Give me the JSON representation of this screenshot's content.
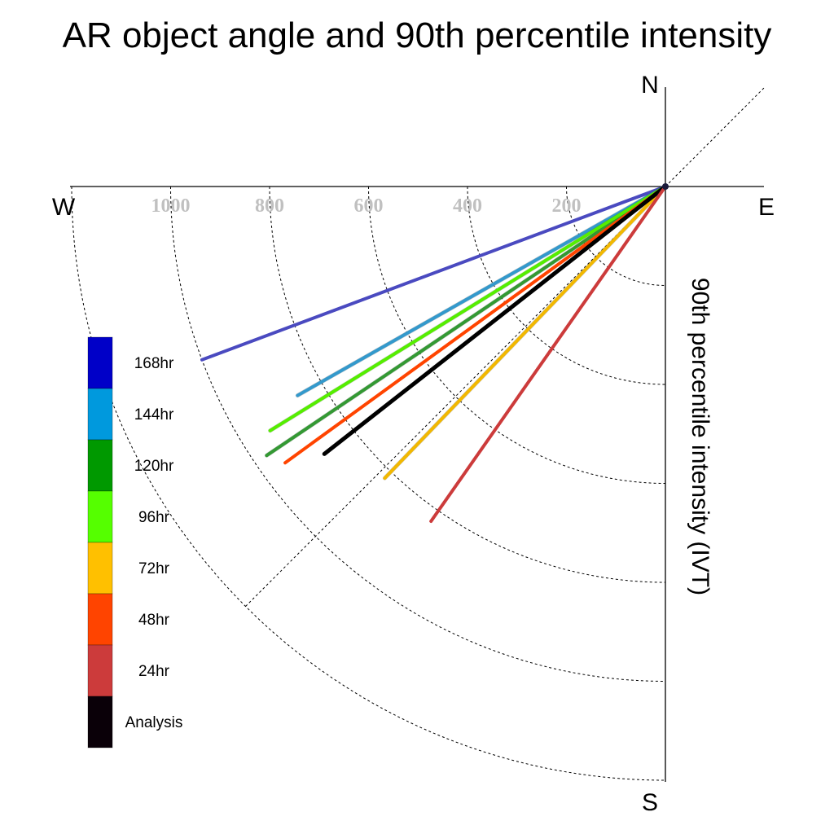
{
  "chart_data": {
    "type": "polar-line",
    "title": "AR object angle and 90th percentile intensity",
    "ylabel": "90th percentile intensity (IVT)",
    "compass": {
      "north": "N",
      "south": "S",
      "east": "E",
      "west": "W"
    },
    "radial_ticks": [
      200,
      400,
      600,
      800,
      1000
    ],
    "radial_max": 1200,
    "grid": true,
    "legend_position": "left",
    "series": [
      {
        "name": "168hr",
        "color": "#0000C8",
        "line_color": "#4A4AC0",
        "angle_deg_below_west": 20.5,
        "intensity": 1000
      },
      {
        "name": "144hr",
        "color": "#0099DD",
        "line_color": "#3399CC",
        "angle_deg_below_west": 29.6,
        "intensity": 855
      },
      {
        "name": "120hr",
        "color": "#009900",
        "line_color": "#339933",
        "angle_deg_below_west": 34.0,
        "intensity": 972
      },
      {
        "name": "96hr",
        "color": "#55FF00",
        "line_color": "#55EE00",
        "angle_deg_below_west": 31.7,
        "intensity": 939
      },
      {
        "name": "72hr",
        "color": "#FFC000",
        "line_color": "#F2B800",
        "angle_deg_below_west": 46.1,
        "intensity": 818
      },
      {
        "name": "48hr",
        "color": "#FF4400",
        "line_color": "#FF4400",
        "angle_deg_below_west": 36.0,
        "intensity": 950
      },
      {
        "name": "24hr",
        "color": "#CC3B3B",
        "line_color": "#CC3B3B",
        "angle_deg_below_west": 55.0,
        "intensity": 826
      },
      {
        "name": "Analysis",
        "color": "#0A0008",
        "line_color": "#000000",
        "angle_deg_below_west": 38.1,
        "intensity": 876
      }
    ]
  }
}
